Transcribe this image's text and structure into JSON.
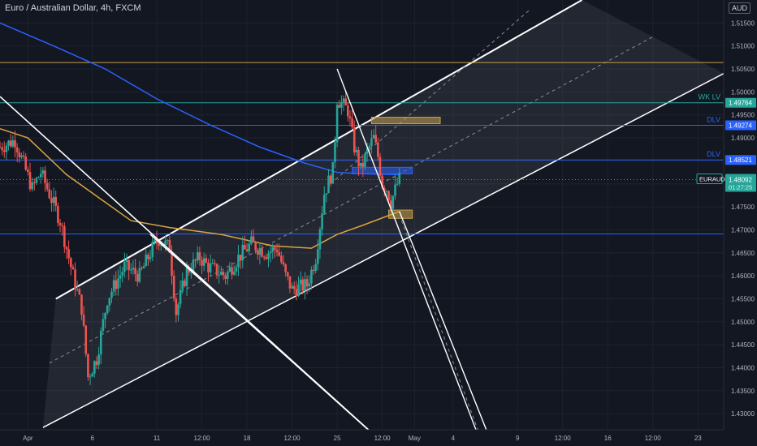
{
  "header": {
    "title": "Euro / Australian Dollar, 4h, FXCM",
    "currency_badge": "AUD"
  },
  "colors": {
    "background": "#131722",
    "grid": "#1e222d",
    "up": "#26a69a",
    "down": "#ef5350",
    "axis_text": "#b2b5be",
    "ma_fast": "#2962ff",
    "ma_slow": "#d9a441",
    "channel": "#ffffff",
    "level_gold": "#c8a24a",
    "level_teal": "#26a69a",
    "level_blue": "#2962ff",
    "zone_gold": "#c8a24a",
    "zone_blue": "#2962ff",
    "price_tag": "#26a69a"
  },
  "chart_data": {
    "type": "candlestick",
    "symbol": "EURAUD",
    "timeframe": "4h",
    "y_axis": {
      "range": [
        1.4265,
        1.52
      ],
      "ticks": [
        "1.51500",
        "1.51000",
        "1.50500",
        "1.50000",
        "1.49500",
        "1.49000",
        "1.48500",
        "1.48000",
        "1.47500",
        "1.47000",
        "1.46500",
        "1.46000",
        "1.45500",
        "1.45000",
        "1.44500",
        "1.44000",
        "1.43500",
        "1.43000"
      ]
    },
    "x_axis": {
      "range": [
        "2022-03-29T20:00",
        "2022-05-25T00:00"
      ],
      "ticks": [
        {
          "label": "Apr",
          "t": "2022-04-01T00:00"
        },
        {
          "label": "6",
          "t": "2022-04-06T00:00"
        },
        {
          "label": "11",
          "t": "2022-04-11T00:00"
        },
        {
          "label": "12:00",
          "t": "2022-04-14T12:00"
        },
        {
          "label": "18",
          "t": "2022-04-18T00:00"
        },
        {
          "label": "12:00",
          "t": "2022-04-21T12:00"
        },
        {
          "label": "25",
          "t": "2022-04-25T00:00"
        },
        {
          "label": "12:00",
          "t": "2022-04-28T12:00"
        },
        {
          "label": "May",
          "t": "2022-05-01T00:00"
        },
        {
          "label": "4",
          "t": "2022-05-04T00:00"
        },
        {
          "label": "9",
          "t": "2022-05-09T00:00"
        },
        {
          "label": "12:00",
          "t": "2022-05-12T12:00"
        },
        {
          "label": "16",
          "t": "2022-05-16T00:00"
        },
        {
          "label": "12:00",
          "t": "2022-05-19T12:00"
        },
        {
          "label": "23",
          "t": "2022-05-23T00:00"
        }
      ]
    },
    "candle_anchors_close": [
      [
        "2022-03-29T20:00",
        1.488
      ],
      [
        "2022-03-31T00:00",
        1.4895
      ],
      [
        "2022-04-01T08:00",
        1.479
      ],
      [
        "2022-04-02T00:00",
        1.4825
      ],
      [
        "2022-04-03T12:00",
        1.472
      ],
      [
        "2022-04-04T12:00",
        1.46
      ],
      [
        "2022-04-05T04:00",
        1.453
      ],
      [
        "2022-04-05T16:00",
        1.438
      ],
      [
        "2022-04-06T08:00",
        1.442
      ],
      [
        "2022-04-07T04:00",
        1.455
      ],
      [
        "2022-04-08T12:00",
        1.462
      ],
      [
        "2022-04-09T16:00",
        1.46
      ],
      [
        "2022-04-10T16:00",
        1.466
      ],
      [
        "2022-04-11T04:00",
        1.468
      ],
      [
        "2022-04-12T00:00",
        1.466
      ],
      [
        "2022-04-12T12:00",
        1.452
      ],
      [
        "2022-04-13T08:00",
        1.461
      ],
      [
        "2022-04-14T08:00",
        1.464
      ],
      [
        "2022-04-15T00:00",
        1.462
      ],
      [
        "2022-04-16T08:00",
        1.46
      ],
      [
        "2022-04-17T08:00",
        1.464
      ],
      [
        "2022-04-18T08:00",
        1.467
      ],
      [
        "2022-04-19T12:00",
        1.465
      ],
      [
        "2022-04-20T08:00",
        1.466
      ],
      [
        "2022-04-21T00:00",
        1.46
      ],
      [
        "2022-04-21T12:00",
        1.457
      ],
      [
        "2022-04-22T16:00",
        1.458
      ],
      [
        "2022-04-23T08:00",
        1.464
      ],
      [
        "2022-04-24T00:00",
        1.478
      ],
      [
        "2022-04-24T16:00",
        1.483
      ],
      [
        "2022-04-24T20:00",
        1.49
      ],
      [
        "2022-04-25T00:00",
        1.4985
      ],
      [
        "2022-04-25T08:00",
        1.4975
      ],
      [
        "2022-04-25T20:00",
        1.496
      ],
      [
        "2022-04-26T08:00",
        1.488
      ],
      [
        "2022-04-26T20:00",
        1.483
      ],
      [
        "2022-04-27T08:00",
        1.487
      ],
      [
        "2022-04-27T20:00",
        1.49
      ],
      [
        "2022-04-28T04:00",
        1.486
      ],
      [
        "2022-04-28T12:00",
        1.48
      ],
      [
        "2022-04-28T20:00",
        1.479
      ],
      [
        "2022-04-29T04:00",
        1.476
      ],
      [
        "2022-04-29T16:00",
        1.48
      ],
      [
        "2022-04-29T20:00",
        1.4809
      ]
    ],
    "current_price": {
      "symbol": "EURAUD",
      "value": "1.48092",
      "countdown": "01:27:25"
    },
    "horizontal_levels": [
      {
        "price": 1.5064,
        "label": "",
        "color": "#c8a24a",
        "style": "solid"
      },
      {
        "price": 1.49764,
        "label": "WK LV",
        "color": "#26a69a",
        "style": "solid",
        "tag": "1.49764"
      },
      {
        "price": 1.49274,
        "label": "DLV",
        "color": "#2962ff",
        "style": "solid",
        "tag": "1.49274"
      },
      {
        "price": 1.48521,
        "label": "DLV",
        "color": "#2962ff",
        "style": "solid",
        "tag": "1.48521"
      },
      {
        "price": 1.4691,
        "label": "",
        "color": "#2962ff",
        "style": "solid"
      }
    ],
    "zones": [
      {
        "t1": "2022-04-27T16:00",
        "t2": "2022-05-03T00:00",
        "p1": 1.4945,
        "p2": 1.4932,
        "color": "#c8a24a"
      },
      {
        "t1": "2022-04-26T04:00",
        "t2": "2022-04-30T20:00",
        "p1": 1.4836,
        "p2": 1.4822,
        "color": "#2962ff"
      },
      {
        "t1": "2022-04-29T00:00",
        "t2": "2022-04-30T20:00",
        "p1": 1.4743,
        "p2": 1.4725,
        "color": "#c8a24a"
      }
    ],
    "trendlines": [
      {
        "p1": [
          "2022-03-29T20:00",
          1.499
        ],
        "p2": [
          "2022-04-30T00:00",
          1.42
        ],
        "width": 1.6
      },
      {
        "p1": [
          "2022-04-10T12:00",
          1.469
        ],
        "p2": [
          "2022-04-30T00:00",
          1.42
        ],
        "width": 1.6
      },
      {
        "p1": [
          "2022-04-25T00:00",
          1.505
        ],
        "p2": [
          "2022-05-06T16:00",
          1.42
        ],
        "width": 1.4
      },
      {
        "p1": [
          "2022-04-29T20:00",
          1.474
        ],
        "p2": [
          "2022-05-07T12:00",
          1.42
        ],
        "width": 1.4
      },
      {
        "p1": [
          "2022-04-30T00:00",
          1.472
        ],
        "p2": [
          "2022-05-06T12:00",
          1.422
        ],
        "width": 1,
        "dash": true
      }
    ],
    "channel": {
      "upper": [
        [
          "2022-04-03T04:00",
          1.455
        ],
        [
          "2022-05-14T00:00",
          1.52
        ]
      ],
      "lower": [
        [
          "2022-04-02T04:00",
          1.427
        ],
        [
          "2022-05-25T00:00",
          1.504
        ]
      ],
      "mid_dashes": [
        [
          [
            "2022-04-02T16:00",
            1.441
          ],
          [
            "2022-05-19T12:00",
            1.512
          ]
        ],
        [
          [
            "2022-04-24T12:00",
            1.48
          ],
          [
            "2022-05-10T00:00",
            1.518
          ]
        ]
      ]
    },
    "moving_averages": [
      {
        "name": "",
        "color": "#2962ff",
        "points": [
          [
            "2022-03-29T20:00",
            1.515
          ],
          [
            "2022-04-03T00:00",
            1.51
          ],
          [
            "2022-04-07T00:00",
            1.505
          ],
          [
            "2022-04-11T00:00",
            1.4985
          ],
          [
            "2022-04-15T00:00",
            1.493
          ],
          [
            "2022-04-19T00:00",
            1.488
          ],
          [
            "2022-04-22T12:00",
            1.4845
          ],
          [
            "2022-04-25T00:00",
            1.4825
          ],
          [
            "2022-04-27T00:00",
            1.4822
          ],
          [
            "2022-04-29T20:00",
            1.482
          ]
        ]
      },
      {
        "name": "",
        "color": "#d9a441",
        "points": [
          [
            "2022-03-29T20:00",
            1.492
          ],
          [
            "2022-04-01T00:00",
            1.49
          ],
          [
            "2022-04-04T00:00",
            1.482
          ],
          [
            "2022-04-07T00:00",
            1.476
          ],
          [
            "2022-04-09T00:00",
            1.472
          ],
          [
            "2022-04-12T00:00",
            1.4705
          ],
          [
            "2022-04-16T00:00",
            1.469
          ],
          [
            "2022-04-20T00:00",
            1.4665
          ],
          [
            "2022-04-23T00:00",
            1.466
          ],
          [
            "2022-04-25T00:00",
            1.469
          ],
          [
            "2022-04-27T00:00",
            1.471
          ],
          [
            "2022-04-29T20:00",
            1.474
          ]
        ]
      }
    ]
  }
}
